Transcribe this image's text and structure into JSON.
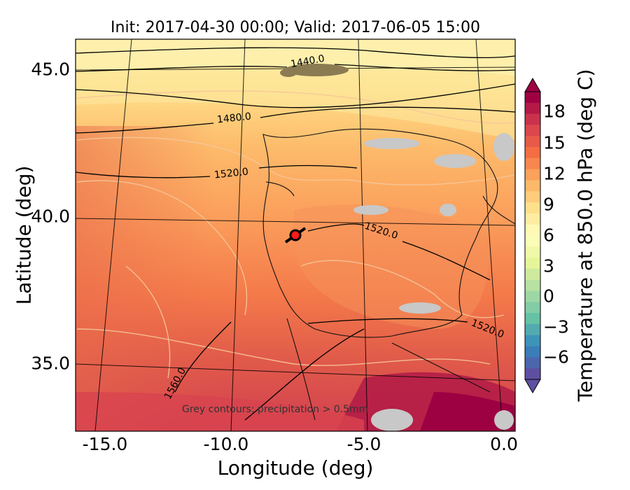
{
  "figure": {
    "title": "Init: 2017-04-30 00:00; Valid: 2017-06-05 15:00",
    "xlabel": "Longitude (deg)",
    "ylabel": "Latitude (deg)",
    "x_ticks": [
      "-15.0",
      "-10.0",
      "-5.0",
      "0.0"
    ],
    "y_ticks": [
      "45.0",
      "40.0",
      "35.0"
    ],
    "annotation": "Grey contours: precipitation > 0.5mm",
    "contour_labels": [
      "1440.0",
      "1480.0",
      "1520.0",
      "1520.0",
      "1520.0",
      "1560.0"
    ],
    "marker_color": "#ff1a1a"
  },
  "colorbar": {
    "label": "Temperature at 850.0 hPa (deg C)",
    "ticks": [
      "18",
      "15",
      "12",
      "9",
      "6",
      "3",
      "0",
      "−3",
      "−6"
    ],
    "colormap": [
      "#9e0142",
      "#d53e4f",
      "#f46d43",
      "#fdae61",
      "#fee08b",
      "#ffffbf",
      "#e6f598",
      "#abdda4",
      "#66c2a5",
      "#3288bd",
      "#5e4fa2"
    ]
  }
}
